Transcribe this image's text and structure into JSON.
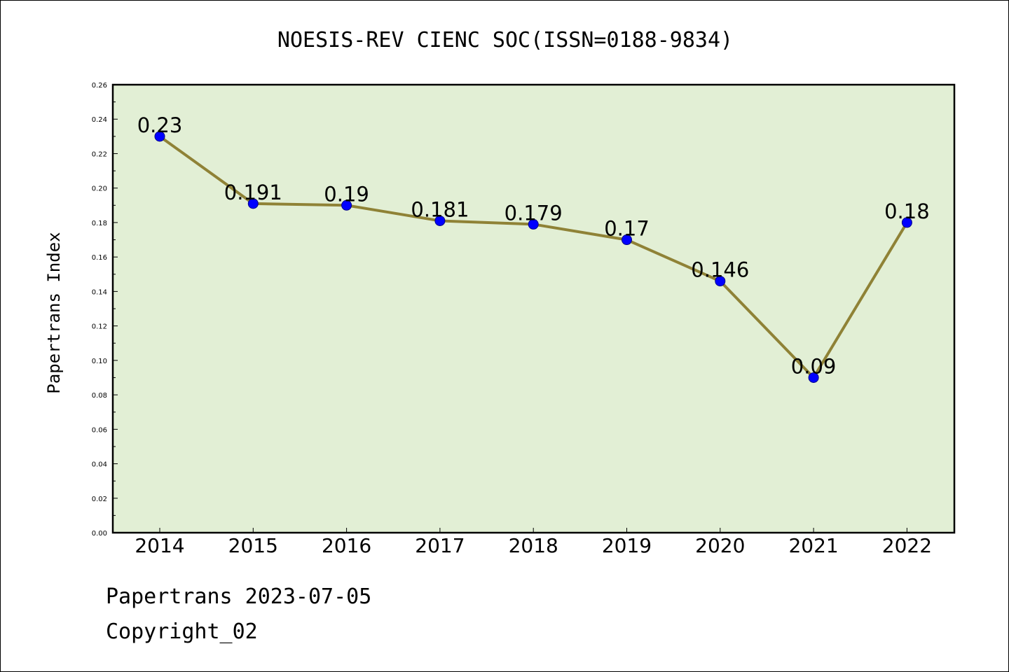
{
  "chart_data": {
    "type": "line",
    "title": "NOESIS-REV CIENC SOC(ISSN=0188-9834)",
    "ylabel": "Papertrans Index",
    "categories": [
      "2014",
      "2015",
      "2016",
      "2017",
      "2018",
      "2019",
      "2020",
      "2021",
      "2022"
    ],
    "values": [
      0.23,
      0.191,
      0.19,
      0.181,
      0.179,
      0.17,
      0.146,
      0.09,
      0.18
    ],
    "value_labels": [
      "0.23",
      "0.191",
      "0.19",
      "0.181",
      "0.179",
      "0.17",
      "0.146",
      "0.09",
      "0.18"
    ],
    "ylim": [
      0,
      0.26
    ],
    "yticks": [
      "0.00",
      "0.02",
      "0.04",
      "0.06",
      "0.08",
      "0.10",
      "0.12",
      "0.14",
      "0.16",
      "0.18",
      "0.20",
      "0.22",
      "0.24",
      "0.26"
    ],
    "grid": false,
    "legend": "none",
    "colors": {
      "plot_background": "#e2efd5",
      "line": "#8f8236",
      "marker": "#0000ff"
    }
  },
  "footer": {
    "line1": "Papertrans 2023-07-05",
    "line2": "Copyright_02"
  }
}
